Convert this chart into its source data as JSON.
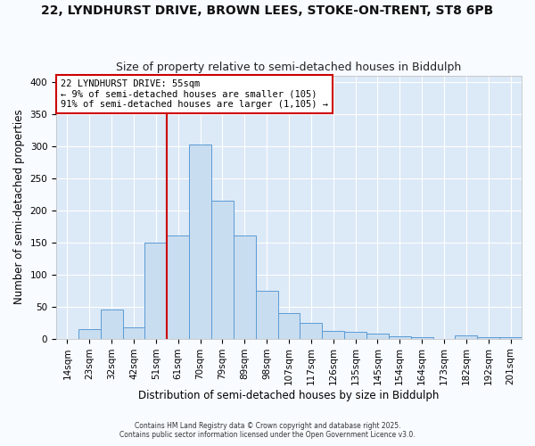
{
  "title": "22, LYNDHURST DRIVE, BROWN LEES, STOKE-ON-TRENT, ST8 6PB",
  "subtitle": "Size of property relative to semi-detached houses in Biddulph",
  "xlabel": "Distribution of semi-detached houses by size in Biddulph",
  "ylabel": "Number of semi-detached properties",
  "bar_labels": [
    "14sqm",
    "23sqm",
    "32sqm",
    "42sqm",
    "51sqm",
    "61sqm",
    "70sqm",
    "79sqm",
    "89sqm",
    "98sqm",
    "107sqm",
    "117sqm",
    "126sqm",
    "135sqm",
    "145sqm",
    "154sqm",
    "164sqm",
    "173sqm",
    "182sqm",
    "192sqm",
    "201sqm"
  ],
  "bar_values": [
    0,
    15,
    45,
    17,
    150,
    160,
    303,
    215,
    160,
    75,
    40,
    25,
    12,
    11,
    8,
    4,
    2,
    0,
    5,
    2,
    2
  ],
  "bar_color": "#c9ddf0",
  "bar_edgecolor": "#5b9bd5",
  "bg_color": "#dce9f7",
  "plot_bg_color": "#dce9f7",
  "grid_color": "#ffffff",
  "vline_x": 4.5,
  "vline_color": "#cc0000",
  "annotation_title": "22 LYNDHURST DRIVE: 55sqm",
  "annotation_line2": "← 9% of semi-detached houses are smaller (105)",
  "annotation_line3": "91% of semi-detached houses are larger (1,105) →",
  "annotation_box_facecolor": "#ffffff",
  "annotation_box_edgecolor": "#cc0000",
  "ylim": [
    0,
    410
  ],
  "yticks": [
    0,
    50,
    100,
    150,
    200,
    250,
    300,
    350,
    400
  ],
  "footer1": "Contains HM Land Registry data © Crown copyright and database right 2025.",
  "footer2": "Contains public sector information licensed under the Open Government Licence v3.0.",
  "title_fontsize": 10,
  "subtitle_fontsize": 9,
  "tick_fontsize": 7.5,
  "label_fontsize": 8.5,
  "annot_fontsize": 7.5,
  "footer_fontsize": 5.5
}
